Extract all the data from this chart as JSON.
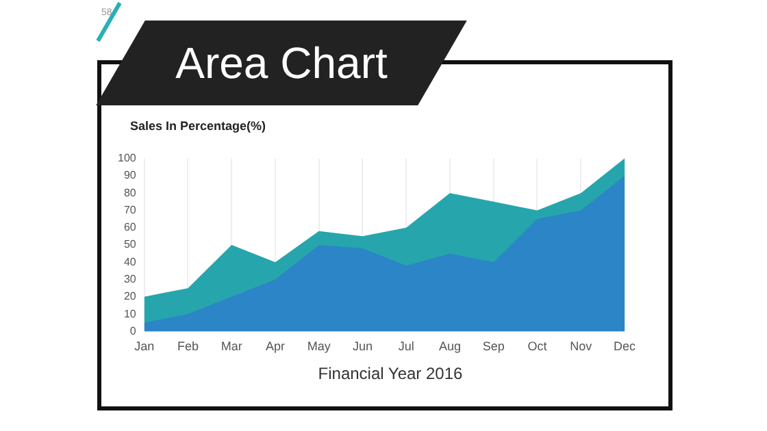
{
  "chart_data": {
    "type": "area",
    "title": "Area Chart",
    "ylabel": "Sales In Percentage(%)",
    "xlabel": "Financial Year 2016",
    "annotations": [
      "58"
    ],
    "categories": [
      "Jan",
      "Feb",
      "Mar",
      "Apr",
      "May",
      "Jun",
      "Jul",
      "Aug",
      "Sep",
      "Oct",
      "Nov",
      "Dec"
    ],
    "series": [
      {
        "color": "#26a6ac",
        "values": [
          20,
          25,
          50,
          40,
          58,
          55,
          60,
          80,
          75,
          70,
          80,
          100
        ]
      },
      {
        "color": "#2b85c6",
        "values": [
          5,
          10,
          20,
          30,
          50,
          48,
          38,
          45,
          40,
          65,
          70,
          90
        ]
      }
    ],
    "ylim": [
      0,
      100
    ],
    "yticks": [
      0,
      10,
      20,
      30,
      40,
      50,
      60,
      70,
      80,
      90,
      100
    ],
    "grid": "x",
    "legend": false
  }
}
